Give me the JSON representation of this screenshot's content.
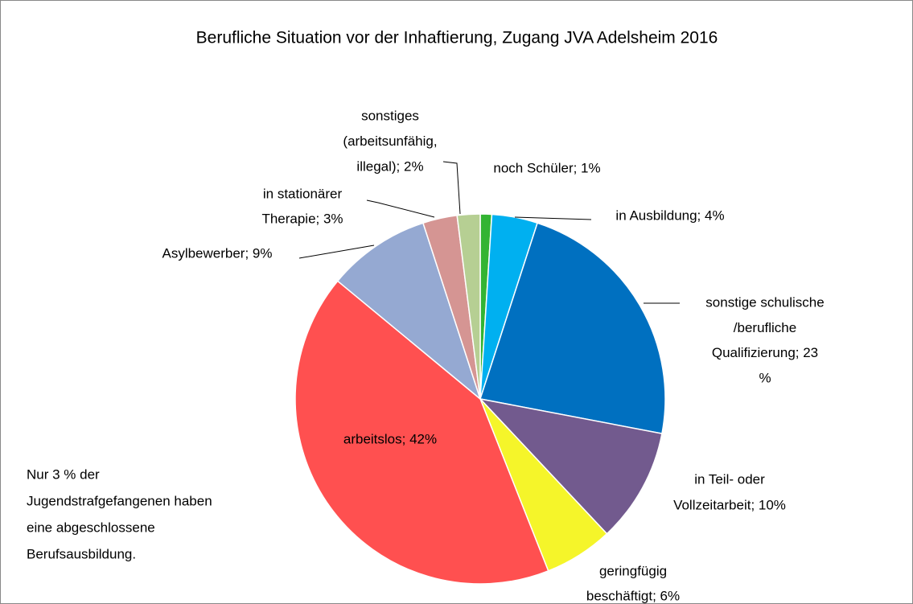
{
  "chart_data": {
    "type": "pie",
    "title": "Berufliche Situation vor der Inhaftierung, Zugang JVA Adelsheim 2016",
    "values": [
      1,
      4,
      23,
      10,
      6,
      42,
      9,
      3,
      2
    ],
    "value_labels": [
      [
        "noch Schüler; 1%"
      ],
      [
        "in Ausbildung; 4%"
      ],
      [
        "sonstige schulische",
        "/berufliche",
        "Qualifizierung; 23",
        "%"
      ],
      [
        "in Teil- oder",
        "Vollzeitarbeit; 10%"
      ],
      [
        "geringfügig",
        "beschäftigt; 6%"
      ],
      [
        "arbeitslos; 42%"
      ],
      [
        "Asylbewerber; 9%"
      ],
      [
        "in stationärer",
        "Therapie; 3%"
      ],
      [
        "sonstiges",
        "(arbeitsunfähig,",
        "illegal); 2%"
      ]
    ],
    "colors": [
      "#33b433",
      "#00b0f0",
      "#0070c0",
      "#725a8e",
      "#f5f52a",
      "#ff5050",
      "#95a9d2",
      "#d59593",
      "#b6cf93"
    ],
    "annotation": [
      "Nur 3 % der",
      "Jugendstrafgefangenen haben",
      "eine abgeschlossene",
      "Berufsausbildung."
    ]
  }
}
